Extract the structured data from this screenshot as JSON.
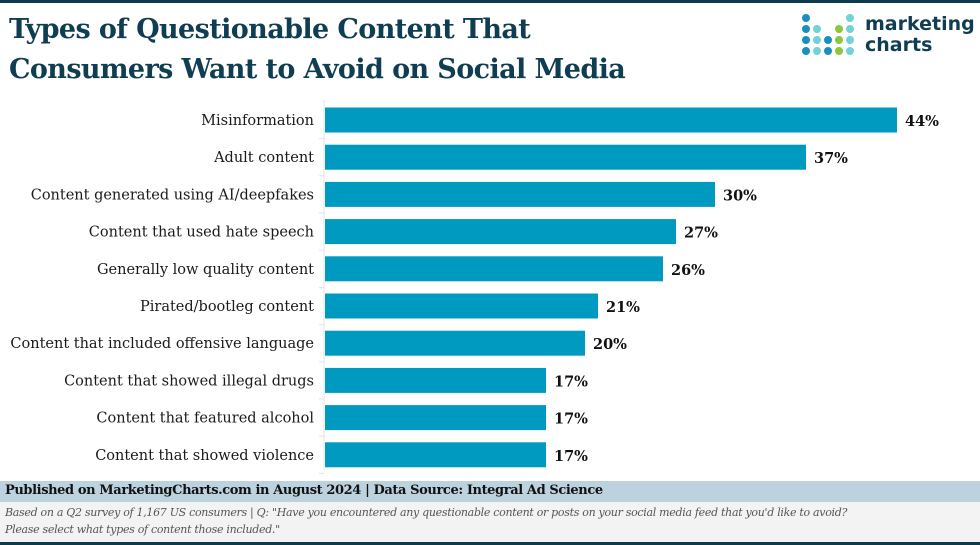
{
  "header": {
    "title_line1": "Types of Questionable Content That",
    "title_line2": "Consumers Want to Avoid on Social Media"
  },
  "logo": {
    "line1": "marketing",
    "line2": "charts",
    "colors": [
      "#1a8fbf",
      "#6fd3d8",
      "#8cc63f"
    ]
  },
  "chart_data": {
    "type": "bar",
    "orientation": "horizontal",
    "title": "Types of Questionable Content That Consumers Want to Avoid on Social Media",
    "xlabel": "",
    "ylabel": "",
    "xlim": [
      0,
      44
    ],
    "grid": false,
    "legend": "none",
    "bar_color": "#0099c0",
    "categories": [
      "Misinformation",
      "Adult content",
      "Content generated using AI/deepfakes",
      "Content that used hate speech",
      "Generally low quality content",
      "Pirated/bootleg content",
      "Content that included offensive language",
      "Content that showed illegal drugs",
      "Content that featured alcohol",
      "Content that showed violence"
    ],
    "values": [
      44,
      37,
      30,
      27,
      26,
      21,
      20,
      17,
      17,
      17
    ],
    "value_labels": [
      "44%",
      "37%",
      "30%",
      "27%",
      "26%",
      "21%",
      "20%",
      "17%",
      "17%",
      "17%"
    ]
  },
  "footer": {
    "published": "Published on MarketingCharts.com in August 2024 | Data Source: Integral Ad Science",
    "note_line1": "Based on a Q2 survey of 1,167 US consumers | Q: \"Have you encountered any questionable content or posts on your social media feed that you'd like to avoid?",
    "note_line2": "Please select what types of content those included.\""
  }
}
